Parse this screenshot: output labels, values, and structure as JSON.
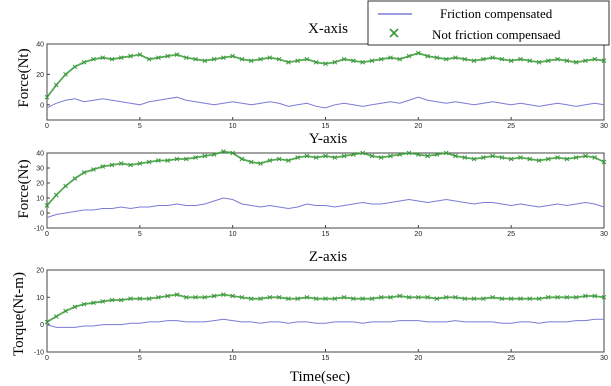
{
  "legend": {
    "placement": "top-right",
    "entries": [
      {
        "label": "Friction compensated",
        "color": "#7b7bd4",
        "marker": "line"
      },
      {
        "label": "Not friction compensaed",
        "color": "#3a9a3a",
        "marker": "x"
      }
    ]
  },
  "xlabel": "Time(sec)",
  "chart_data": [
    {
      "type": "line",
      "title": "X-axis",
      "ylabel": "Force(Nt)",
      "xlim": [
        0,
        30
      ],
      "ylim": [
        -10,
        40
      ],
      "xticks": [
        0,
        5,
        10,
        15,
        20,
        25,
        30
      ],
      "yticks": [
        0,
        20,
        40
      ],
      "grid": false,
      "x": [
        0,
        0.5,
        1,
        1.5,
        2,
        2.5,
        3,
        3.5,
        4,
        4.5,
        5,
        5.5,
        6,
        6.5,
        7,
        7.5,
        8,
        8.5,
        9,
        9.5,
        10,
        10.5,
        11,
        11.5,
        12,
        12.5,
        13,
        13.5,
        14,
        14.5,
        15,
        15.5,
        16,
        16.5,
        17,
        17.5,
        18,
        18.5,
        19,
        19.5,
        20,
        20.5,
        21,
        21.5,
        22,
        22.5,
        23,
        23.5,
        24,
        24.5,
        25,
        25.5,
        26,
        26.5,
        27,
        27.5,
        28,
        28.5,
        29,
        29.5,
        30
      ],
      "series": [
        {
          "name": "Friction compensated",
          "values": [
            -2,
            1,
            3,
            4,
            2,
            3,
            4,
            3,
            2,
            1,
            0,
            2,
            3,
            4,
            5,
            3,
            2,
            1,
            0,
            1,
            2,
            1,
            0,
            1,
            2,
            1,
            -1,
            0,
            1,
            -1,
            -2,
            0,
            1,
            0,
            -1,
            0,
            1,
            2,
            1,
            3,
            5,
            3,
            2,
            1,
            2,
            1,
            0,
            1,
            2,
            1,
            0,
            1,
            0,
            -1,
            0,
            1,
            0,
            -1,
            0,
            1,
            0
          ]
        },
        {
          "name": "Not friction compensaed",
          "values": [
            5,
            13,
            20,
            25,
            28,
            30,
            31,
            30,
            31,
            32,
            33,
            30,
            31,
            32,
            33,
            31,
            30,
            29,
            30,
            31,
            32,
            30,
            29,
            30,
            31,
            30,
            28,
            29,
            30,
            28,
            27,
            28,
            30,
            29,
            28,
            29,
            30,
            31,
            30,
            32,
            34,
            32,
            31,
            30,
            31,
            30,
            29,
            30,
            31,
            30,
            29,
            30,
            29,
            28,
            29,
            30,
            29,
            28,
            29,
            30,
            29
          ]
        }
      ]
    },
    {
      "type": "line",
      "title": "Y-axis",
      "ylabel": "Force(Nt)",
      "xlim": [
        0,
        30
      ],
      "ylim": [
        -10,
        40
      ],
      "xticks": [
        0,
        5,
        10,
        15,
        20,
        25,
        30
      ],
      "yticks": [
        -10,
        0,
        10,
        20,
        30,
        40
      ],
      "grid": false,
      "x": [
        0,
        0.5,
        1,
        1.5,
        2,
        2.5,
        3,
        3.5,
        4,
        4.5,
        5,
        5.5,
        6,
        6.5,
        7,
        7.5,
        8,
        8.5,
        9,
        9.5,
        10,
        10.5,
        11,
        11.5,
        12,
        12.5,
        13,
        13.5,
        14,
        14.5,
        15,
        15.5,
        16,
        16.5,
        17,
        17.5,
        18,
        18.5,
        19,
        19.5,
        20,
        20.5,
        21,
        21.5,
        22,
        22.5,
        23,
        23.5,
        24,
        24.5,
        25,
        25.5,
        26,
        26.5,
        27,
        27.5,
        28,
        28.5,
        29,
        29.5,
        30
      ],
      "series": [
        {
          "name": "Friction compensated",
          "values": [
            -3,
            -1,
            0,
            1,
            2,
            2,
            3,
            3,
            4,
            3,
            4,
            4,
            5,
            5,
            6,
            5,
            5,
            6,
            8,
            10,
            9,
            6,
            5,
            4,
            5,
            4,
            3,
            4,
            6,
            5,
            5,
            4,
            5,
            6,
            7,
            6,
            6,
            7,
            8,
            9,
            8,
            7,
            8,
            9,
            8,
            7,
            6,
            7,
            7,
            6,
            5,
            6,
            5,
            4,
            5,
            6,
            5,
            6,
            7,
            6,
            4
          ]
        },
        {
          "name": "Not friction compensaed",
          "values": [
            5,
            12,
            18,
            23,
            27,
            29,
            31,
            32,
            33,
            32,
            33,
            34,
            35,
            35,
            36,
            36,
            37,
            38,
            39,
            41,
            40,
            36,
            34,
            33,
            35,
            36,
            35,
            37,
            38,
            37,
            38,
            37,
            38,
            39,
            40,
            38,
            37,
            38,
            39,
            40,
            39,
            38,
            39,
            40,
            38,
            37,
            36,
            37,
            38,
            37,
            36,
            37,
            36,
            35,
            36,
            37,
            36,
            37,
            38,
            37,
            34
          ]
        }
      ]
    },
    {
      "type": "line",
      "title": "Z-axis",
      "ylabel": "Torque(Nt-m)",
      "xlim": [
        0,
        30
      ],
      "ylim": [
        -10,
        20
      ],
      "xticks": [
        0,
        5,
        10,
        15,
        20,
        25,
        30
      ],
      "yticks": [
        -10,
        0,
        10,
        20
      ],
      "grid": false,
      "x": [
        0,
        0.5,
        1,
        1.5,
        2,
        2.5,
        3,
        3.5,
        4,
        4.5,
        5,
        5.5,
        6,
        6.5,
        7,
        7.5,
        8,
        8.5,
        9,
        9.5,
        10,
        10.5,
        11,
        11.5,
        12,
        12.5,
        13,
        13.5,
        14,
        14.5,
        15,
        15.5,
        16,
        16.5,
        17,
        17.5,
        18,
        18.5,
        19,
        19.5,
        20,
        20.5,
        21,
        21.5,
        22,
        22.5,
        23,
        23.5,
        24,
        24.5,
        25,
        25.5,
        26,
        26.5,
        27,
        27.5,
        28,
        28.5,
        29,
        29.5,
        30
      ],
      "series": [
        {
          "name": "Friction compensated",
          "values": [
            0,
            -1,
            -1,
            -1,
            -0.5,
            -0.5,
            0,
            0,
            0,
            0.5,
            0.5,
            1,
            1,
            1.5,
            1.5,
            1,
            1,
            1,
            1.5,
            2,
            1.5,
            1,
            1,
            0.5,
            1,
            1,
            0.5,
            1,
            1,
            0.5,
            0.5,
            1,
            1,
            1,
            0.5,
            1,
            1,
            1,
            1.5,
            1.5,
            1.5,
            1,
            1,
            1,
            1.5,
            1,
            1,
            1,
            1,
            0.5,
            0.5,
            1,
            1,
            0.5,
            1,
            1,
            1,
            1.5,
            1.5,
            2,
            2
          ]
        },
        {
          "name": "Not friction compensaed",
          "values": [
            1,
            3,
            5,
            6.5,
            7.5,
            8,
            8.5,
            9,
            9,
            9.5,
            9.5,
            9.5,
            10,
            10.5,
            11,
            10,
            10,
            10,
            10.5,
            11,
            10.5,
            10,
            9.5,
            9.5,
            10,
            10,
            9.5,
            9.5,
            10,
            9.5,
            9.5,
            9.5,
            10,
            9.5,
            9.5,
            9.5,
            10,
            10,
            10.5,
            10,
            10,
            10,
            9.5,
            10,
            10,
            9.5,
            9.5,
            9.5,
            10,
            9.5,
            9.5,
            9.5,
            9.5,
            9.5,
            10,
            10,
            10,
            10,
            10.5,
            10.5,
            10
          ]
        }
      ]
    }
  ]
}
